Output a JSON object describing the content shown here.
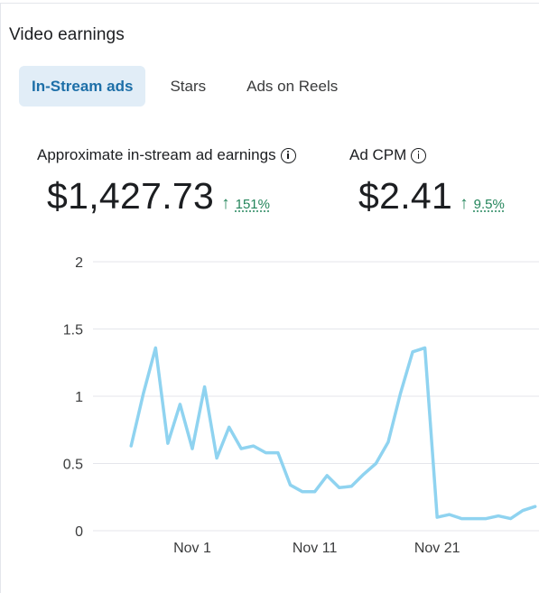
{
  "section": {
    "title": "Video earnings"
  },
  "tabs": [
    {
      "label": "In-Stream ads",
      "active": true
    },
    {
      "label": "Stars",
      "active": false
    },
    {
      "label": "Ads on Reels",
      "active": false
    }
  ],
  "metrics": {
    "earnings": {
      "label": "Approximate in-stream ad earnings",
      "value": "$1,427.73",
      "change": "151%",
      "direction": "up",
      "info_icon": "info-icon"
    },
    "cpm": {
      "label": "Ad CPM",
      "value": "$2.41",
      "change": "9.5%",
      "direction": "up",
      "info_icon": "info-icon"
    }
  },
  "colors": {
    "accent": "#1d6fa8",
    "tab_active_bg": "#e1edf7",
    "positive": "#24855b",
    "line": "#8fd3f0",
    "grid": "#e4e6eb"
  },
  "chart_data": {
    "type": "line",
    "title": "",
    "xlabel": "",
    "ylabel": "",
    "ylim": [
      0,
      2
    ],
    "yticks": [
      "0",
      "0.5",
      "1",
      "1.5",
      "2"
    ],
    "xtick_labels": [
      "Nov 1",
      "Nov 11",
      "Nov 21"
    ],
    "xtick_days": [
      1,
      11,
      21
    ],
    "grid": true,
    "series": [
      {
        "days": [
          -4,
          -3,
          -2,
          -1,
          0,
          1,
          2,
          3,
          4,
          5,
          6,
          7,
          8,
          9,
          10,
          11,
          12,
          13,
          14,
          15,
          16,
          17,
          18,
          19,
          20,
          21,
          22,
          23,
          24,
          25,
          26,
          27,
          28,
          29
        ],
        "values": [
          0.63,
          1.02,
          1.36,
          0.65,
          0.94,
          0.61,
          1.07,
          0.54,
          0.77,
          0.61,
          0.63,
          0.58,
          0.58,
          0.34,
          0.29,
          0.29,
          0.41,
          0.32,
          0.33,
          0.42,
          0.5,
          0.66,
          1.02,
          1.33,
          1.36,
          0.1,
          0.12,
          0.09,
          0.09,
          0.09,
          0.11,
          0.09,
          0.15,
          0.18
        ]
      }
    ]
  }
}
